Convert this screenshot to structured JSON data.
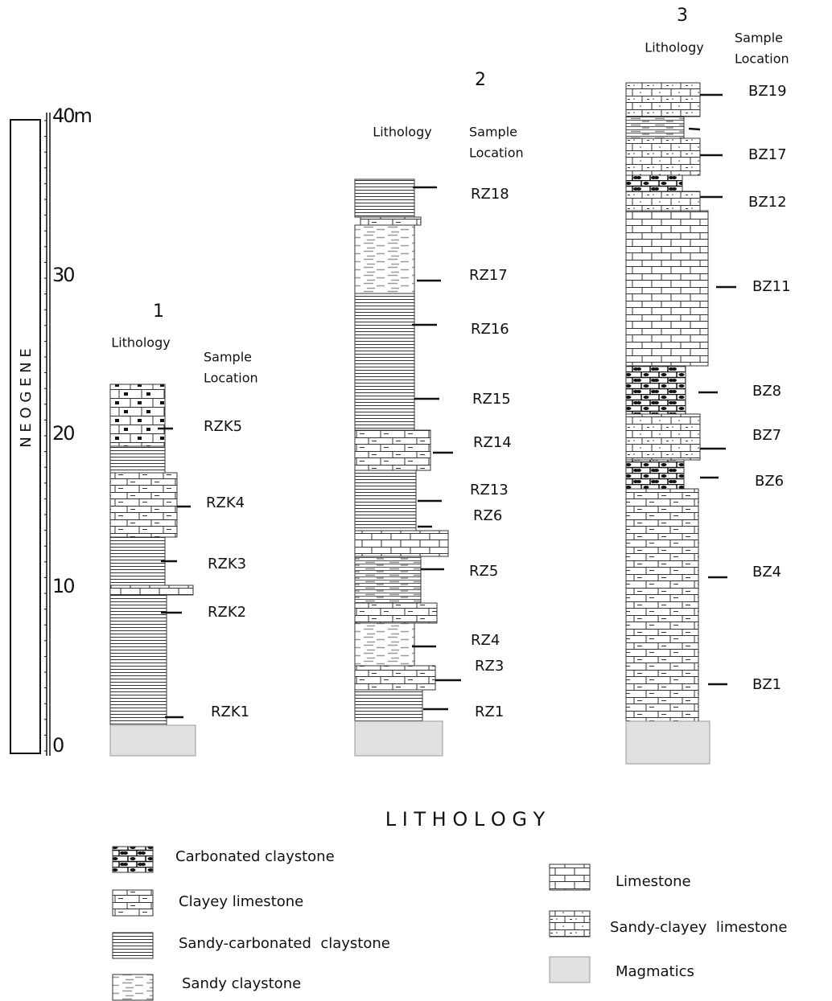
{
  "scale": {
    "ticks": [
      "40m",
      "30",
      "20",
      "10",
      "0"
    ],
    "era": "N E O G E N E"
  },
  "columns": [
    {
      "number": "1",
      "lithology_label": "Lithology",
      "sample_label": [
        "Sample",
        "Location"
      ],
      "samples": [
        "RZK5",
        "RZK4",
        "RZK3",
        "RZK2",
        "RZK1"
      ]
    },
    {
      "number": "2",
      "lithology_label": "Lithology",
      "sample_label": [
        "Sample",
        "Location"
      ],
      "samples": [
        "RZ18",
        "RZ17",
        "RZ16",
        "RZ15",
        "RZ14",
        "RZ13",
        "RZ6",
        "RZ5",
        "RZ4",
        "RZ3",
        "RZ1"
      ]
    },
    {
      "number": "3",
      "lithology_label": "Lithology",
      "sample_label": [
        "Sample",
        "Location"
      ],
      "samples": [
        "BZ19",
        "BZ17",
        "BZ12",
        "BZ11",
        "BZ8",
        "BZ7",
        "BZ6",
        "BZ4",
        "BZ1"
      ]
    }
  ],
  "legend": {
    "title": "L I T H O L O G Y",
    "items": [
      "Carbonated claystone",
      "Clayey limestone",
      "Sandy-carbonated  claystone",
      "Sandy claystone",
      "Limestone",
      "Sandy-clayey  limestone",
      "Magmatics"
    ]
  }
}
